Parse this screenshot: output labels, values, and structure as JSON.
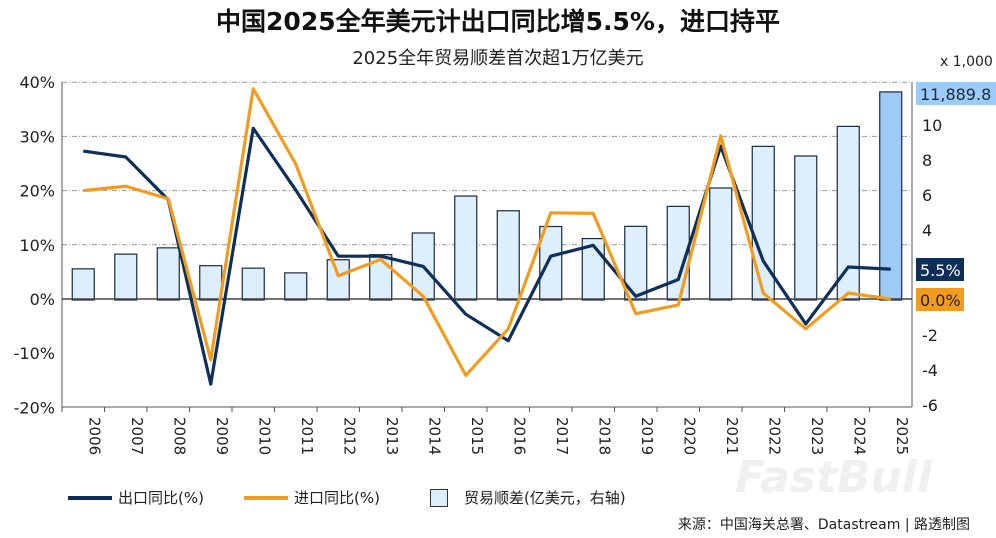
{
  "title": "中国2025全年美元计出口同比增5.5%，进口持平",
  "subtitle": "2025全年贸易顺差首次超1万亿美元",
  "source": "来源：中国海关总署、Datastream | 路透制图",
  "watermark": "FastBull",
  "chart_data": {
    "type": "bar+line",
    "categories": [
      "2006",
      "2007",
      "2008",
      "2009",
      "2010",
      "2011",
      "2012",
      "2013",
      "2014",
      "2015",
      "2016",
      "2017",
      "2018",
      "2019",
      "2020",
      "2021",
      "2022",
      "2023",
      "2024",
      "2025"
    ],
    "left_axis": {
      "ylim": [
        -20,
        40
      ],
      "ticks": [
        "40%",
        "30%",
        "20%",
        "10%",
        "0%",
        "-10%",
        "-20%"
      ]
    },
    "right_axis": {
      "unit_label": "x 1,000",
      "ylim": [
        -6,
        12
      ],
      "ticks": [
        "10",
        "8",
        "6",
        "4",
        "2",
        "0",
        "-2",
        "-4",
        "-6"
      ]
    },
    "series": [
      {
        "name": "出口同比(%)",
        "type": "line",
        "axis": "left",
        "color": "#0d2f5a",
        "values": [
          27.3,
          26.2,
          18.3,
          -15.7,
          31.5,
          20.1,
          7.9,
          7.9,
          6.0,
          -2.8,
          -7.7,
          7.9,
          9.9,
          0.5,
          3.6,
          28.2,
          7.0,
          -4.6,
          5.9,
          5.5
        ],
        "end_label": "5.5%"
      },
      {
        "name": "进口同比(%)",
        "type": "line",
        "axis": "right_percent",
        "color": "#f29c1f",
        "values": [
          20.0,
          20.8,
          18.5,
          -11.2,
          38.8,
          24.9,
          4.3,
          7.3,
          0.5,
          -14.1,
          -5.5,
          15.9,
          15.8,
          -2.7,
          -1.1,
          30.1,
          1.1,
          -5.5,
          1.1,
          0.0
        ],
        "end_label": "0.0%"
      },
      {
        "name": "贸易顺差(亿美元，右轴)",
        "type": "bar",
        "axis": "right",
        "color": "#ddeefc",
        "highlight_color": "#9ccbf7",
        "values": [
          1.78,
          2.62,
          2.98,
          1.96,
          1.82,
          1.55,
          2.3,
          2.59,
          3.83,
          5.94,
          5.1,
          4.2,
          3.51,
          4.21,
          5.35,
          6.4,
          8.78,
          8.23,
          9.92,
          11.89
        ],
        "end_label": "11,889.8"
      }
    ],
    "grid": true,
    "legend": "bottom-left"
  }
}
